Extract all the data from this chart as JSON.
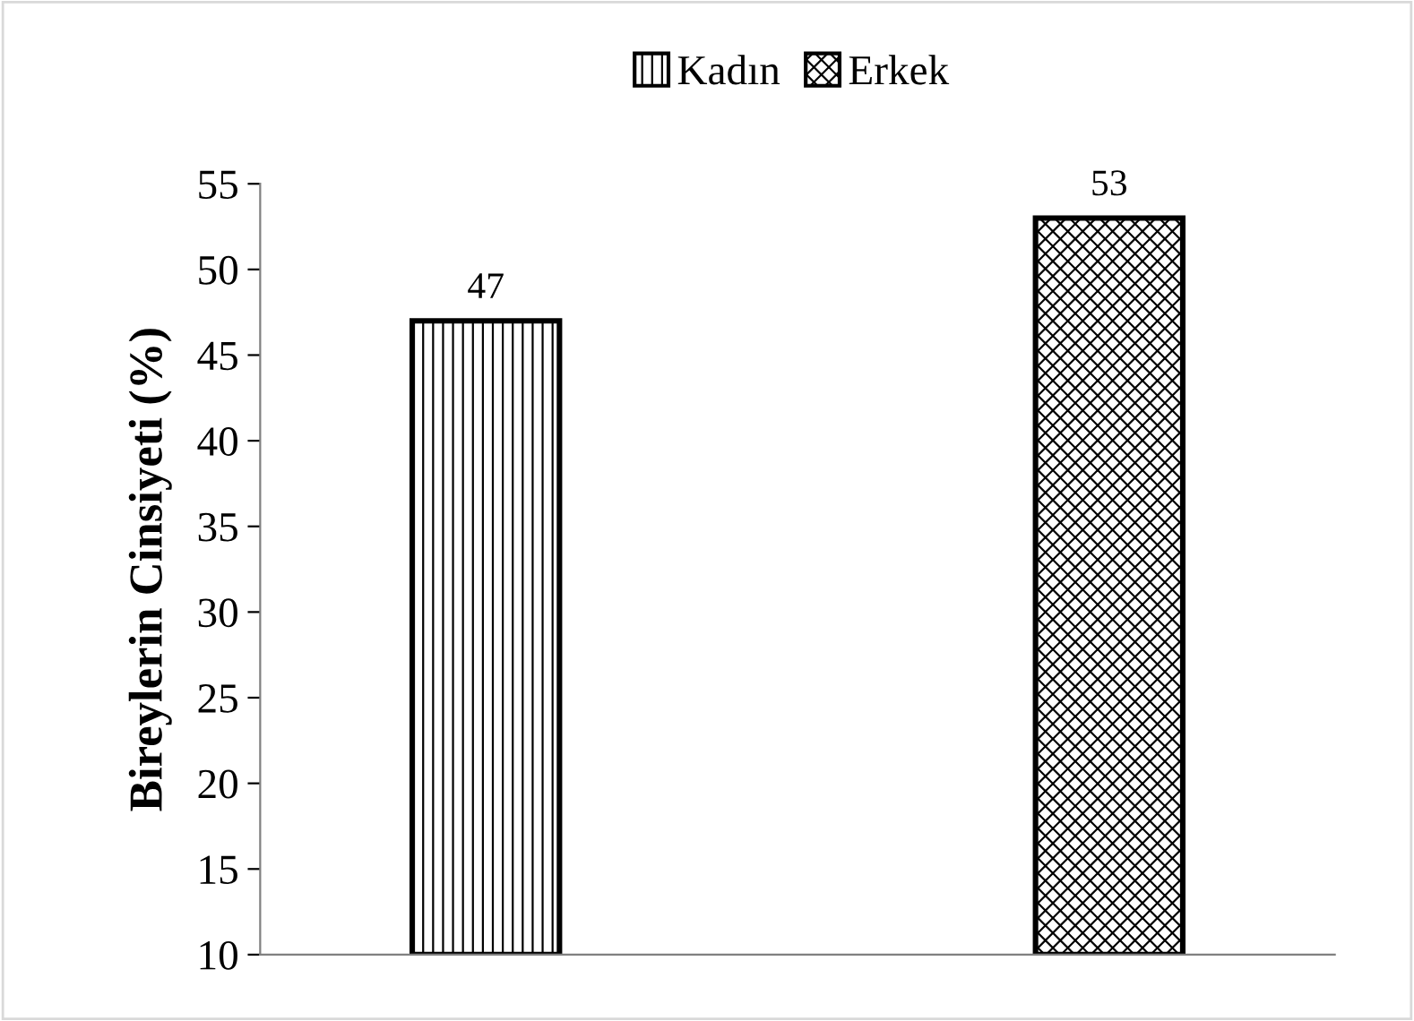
{
  "chart_data": {
    "type": "bar",
    "ylabel": "Bireylerin Cinsiyeti (%)",
    "categories": [
      null
    ],
    "series": [
      {
        "name": "Kadın",
        "color": "#000000",
        "values": [
          47
        ]
      },
      {
        "name": "Erkek",
        "color": "#000000",
        "values": [
          53
        ]
      }
    ],
    "ylim": [
      10,
      55
    ],
    "yticks": [
      10,
      15,
      20,
      25,
      30,
      35,
      40,
      45,
      50,
      55
    ],
    "data_labels": true,
    "legend": "top",
    "grid": false
  }
}
